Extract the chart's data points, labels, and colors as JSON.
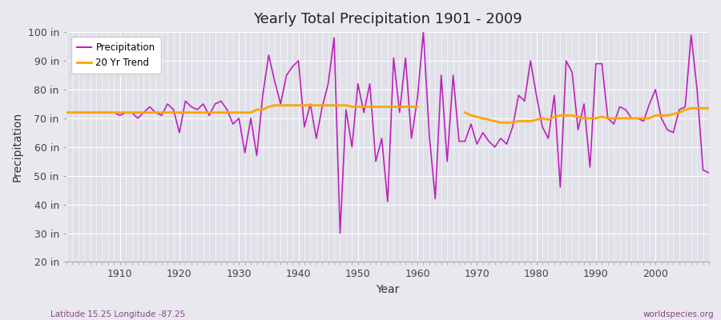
{
  "title": "Yearly Total Precipitation 1901 - 2009",
  "xlabel": "Year",
  "ylabel": "Precipitation",
  "lat_lon_label": "Latitude 15.25 Longitude -87.25",
  "source_label": "worldspecies.org",
  "ylim": [
    20,
    100
  ],
  "precip_color": "#BB22BB",
  "trend_color": "#FFA500",
  "fig_bg_color": "#E8E8EE",
  "ax_bg_color": "#E0E0E8",
  "grid_color": "#FFFFFF",
  "years": [
    1901,
    1902,
    1903,
    1904,
    1905,
    1906,
    1907,
    1908,
    1909,
    1910,
    1911,
    1912,
    1913,
    1914,
    1915,
    1916,
    1917,
    1918,
    1919,
    1920,
    1921,
    1922,
    1923,
    1924,
    1925,
    1926,
    1927,
    1928,
    1929,
    1930,
    1931,
    1932,
    1933,
    1934,
    1935,
    1936,
    1937,
    1938,
    1939,
    1940,
    1941,
    1942,
    1943,
    1944,
    1945,
    1946,
    1947,
    1948,
    1949,
    1950,
    1951,
    1952,
    1953,
    1954,
    1955,
    1956,
    1957,
    1958,
    1959,
    1960,
    1961,
    1962,
    1963,
    1964,
    1965,
    1966,
    1967,
    1968,
    1969,
    1970,
    1971,
    1972,
    1973,
    1974,
    1975,
    1976,
    1977,
    1978,
    1979,
    1980,
    1981,
    1982,
    1983,
    1984,
    1985,
    1986,
    1987,
    1988,
    1989,
    1990,
    1991,
    1992,
    1993,
    1994,
    1995,
    1996,
    1997,
    1998,
    1999,
    2000,
    2001,
    2002,
    2003,
    2004,
    2005,
    2006,
    2007,
    2008,
    2009
  ],
  "precip": [
    72,
    72,
    72,
    72,
    72,
    72,
    72,
    72,
    72,
    71,
    72,
    72,
    70,
    72,
    74,
    72,
    71,
    75,
    73,
    65,
    76,
    74,
    73,
    75,
    71,
    75,
    76,
    73,
    68,
    70,
    58,
    70,
    57,
    78,
    92,
    83,
    75,
    85,
    88,
    90,
    67,
    75,
    63,
    74,
    82,
    98,
    30,
    73,
    60,
    82,
    72,
    82,
    55,
    63,
    41,
    91,
    72,
    91,
    63,
    77,
    100,
    64,
    42,
    85,
    55,
    85,
    62,
    62,
    68,
    61,
    65,
    62,
    60,
    63,
    61,
    67,
    78,
    76,
    90,
    78,
    67,
    63,
    78,
    46,
    90,
    86,
    66,
    75,
    53,
    89,
    89,
    70,
    68,
    74,
    73,
    70,
    70,
    69,
    75,
    80,
    70,
    66,
    65,
    73,
    74,
    99,
    80,
    52,
    51
  ],
  "trend": [
    72,
    72,
    72,
    72,
    72,
    72,
    72,
    72,
    72,
    72,
    72,
    72,
    72,
    72,
    72,
    72,
    72,
    72,
    72,
    72,
    72,
    72,
    72,
    72,
    72,
    72,
    72,
    72,
    72,
    72,
    72,
    72,
    73,
    73,
    74,
    74.5,
    74.5,
    74.5,
    74.5,
    74.5,
    74.5,
    74.5,
    74.5,
    74.5,
    74.5,
    74.5,
    74.5,
    74.5,
    74,
    74,
    74,
    74,
    74,
    74,
    74,
    74,
    74,
    74,
    74,
    74,
    null,
    null,
    null,
    null,
    null,
    null,
    null,
    72,
    71,
    70.5,
    70,
    69.5,
    69,
    68.5,
    68.5,
    68.5,
    69,
    69,
    69,
    69.5,
    70,
    69.5,
    70.5,
    71,
    71,
    71,
    70.5,
    70,
    70,
    70,
    70.5,
    70,
    70,
    70,
    70,
    70,
    70,
    70,
    70,
    71,
    71,
    71,
    71.5,
    72,
    73,
    73.5,
    73.5,
    73.5,
    73.5
  ]
}
